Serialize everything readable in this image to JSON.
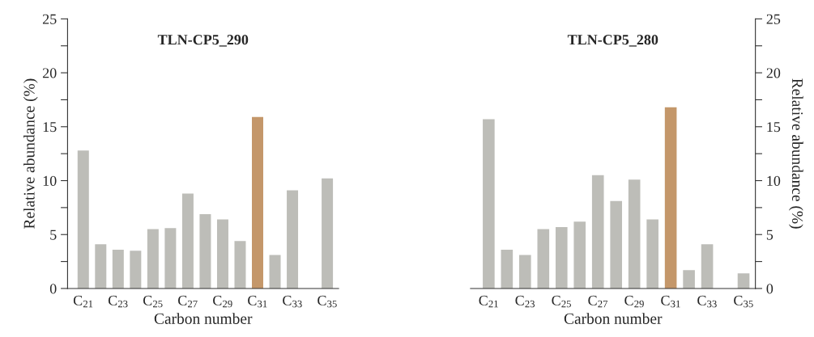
{
  "chart_data": [
    {
      "type": "bar",
      "title": "TLN-CP5_290",
      "xlabel": "Carbon number",
      "ylabel": "Relative abundance (%)",
      "categories": [
        "C$_{21}$",
        null,
        "C$_{23}$",
        null,
        "C$_{25}$",
        null,
        "C$_{27}$",
        null,
        "C$_{29}$",
        null,
        "C$_{31}$",
        null,
        "C$_{33}$",
        null,
        "C$_{35}$"
      ],
      "series": [
        {
          "values": [
            12.8,
            4.1,
            3.6,
            3.5,
            5.5,
            5.6,
            8.8,
            6.9,
            6.4,
            4.4,
            15.9,
            3.1,
            9.1,
            null,
            10.2
          ],
          "colors": [
            "#bdbdb8",
            "#bdbdb8",
            "#bdbdb8",
            "#bdbdb8",
            "#bdbdb8",
            "#bdbdb8",
            "#bdbdb8",
            "#bdbdb8",
            "#bdbdb8",
            "#bdbdb8",
            "#c4976a",
            "#bdbdb8",
            "#bdbdb8",
            "#bdbdb8",
            "#bdbdb8"
          ]
        }
      ],
      "ylim": [
        0,
        25
      ],
      "yticks": [
        0,
        {
          "value": 2.5,
          "label": null
        },
        5,
        {
          "value": 7.5,
          "label": null
        },
        10,
        {
          "value": 12.5,
          "label": null
        },
        15,
        {
          "value": 17.5,
          "label": null
        },
        20,
        {
          "value": 22.5,
          "label": null
        },
        25
      ],
      "grid": false,
      "legend": false
    },
    {
      "type": "bar",
      "title": "TLN-CP5_280",
      "xlabel": "Carbon number",
      "y2label": "Relative abundance (%)",
      "categories": [
        "C$_{21}$",
        null,
        "C$_{23}$",
        null,
        "C$_{25}$",
        null,
        "C$_{27}$",
        null,
        "C$_{29}$",
        null,
        "C$_{31}$",
        null,
        "C$_{33}$",
        null,
        "C$_{35}$"
      ],
      "series": [
        {
          "axis": "y2",
          "values": [
            15.7,
            3.6,
            3.1,
            5.5,
            5.7,
            6.2,
            10.5,
            8.1,
            10.1,
            6.4,
            16.8,
            1.7,
            4.1,
            null,
            1.4
          ],
          "colors": [
            "#bdbdb8",
            "#bdbdb8",
            "#bdbdb8",
            "#bdbdb8",
            "#bdbdb8",
            "#bdbdb8",
            "#bdbdb8",
            "#bdbdb8",
            "#bdbdb8",
            "#bdbdb8",
            "#c4976a",
            "#bdbdb8",
            "#bdbdb8",
            "#bdbdb8",
            "#bdbdb8"
          ]
        }
      ],
      "y2lim": [
        0,
        25
      ],
      "y2ticks": [
        0,
        {
          "value": 2.5,
          "label": null
        },
        5,
        {
          "value": 7.5,
          "label": null
        },
        10,
        {
          "value": 12.5,
          "label": null
        },
        15,
        {
          "value": 17.5,
          "label": null
        },
        20,
        {
          "value": 22.5,
          "label": null
        },
        25
      ],
      "grid": false,
      "legend": false
    }
  ]
}
